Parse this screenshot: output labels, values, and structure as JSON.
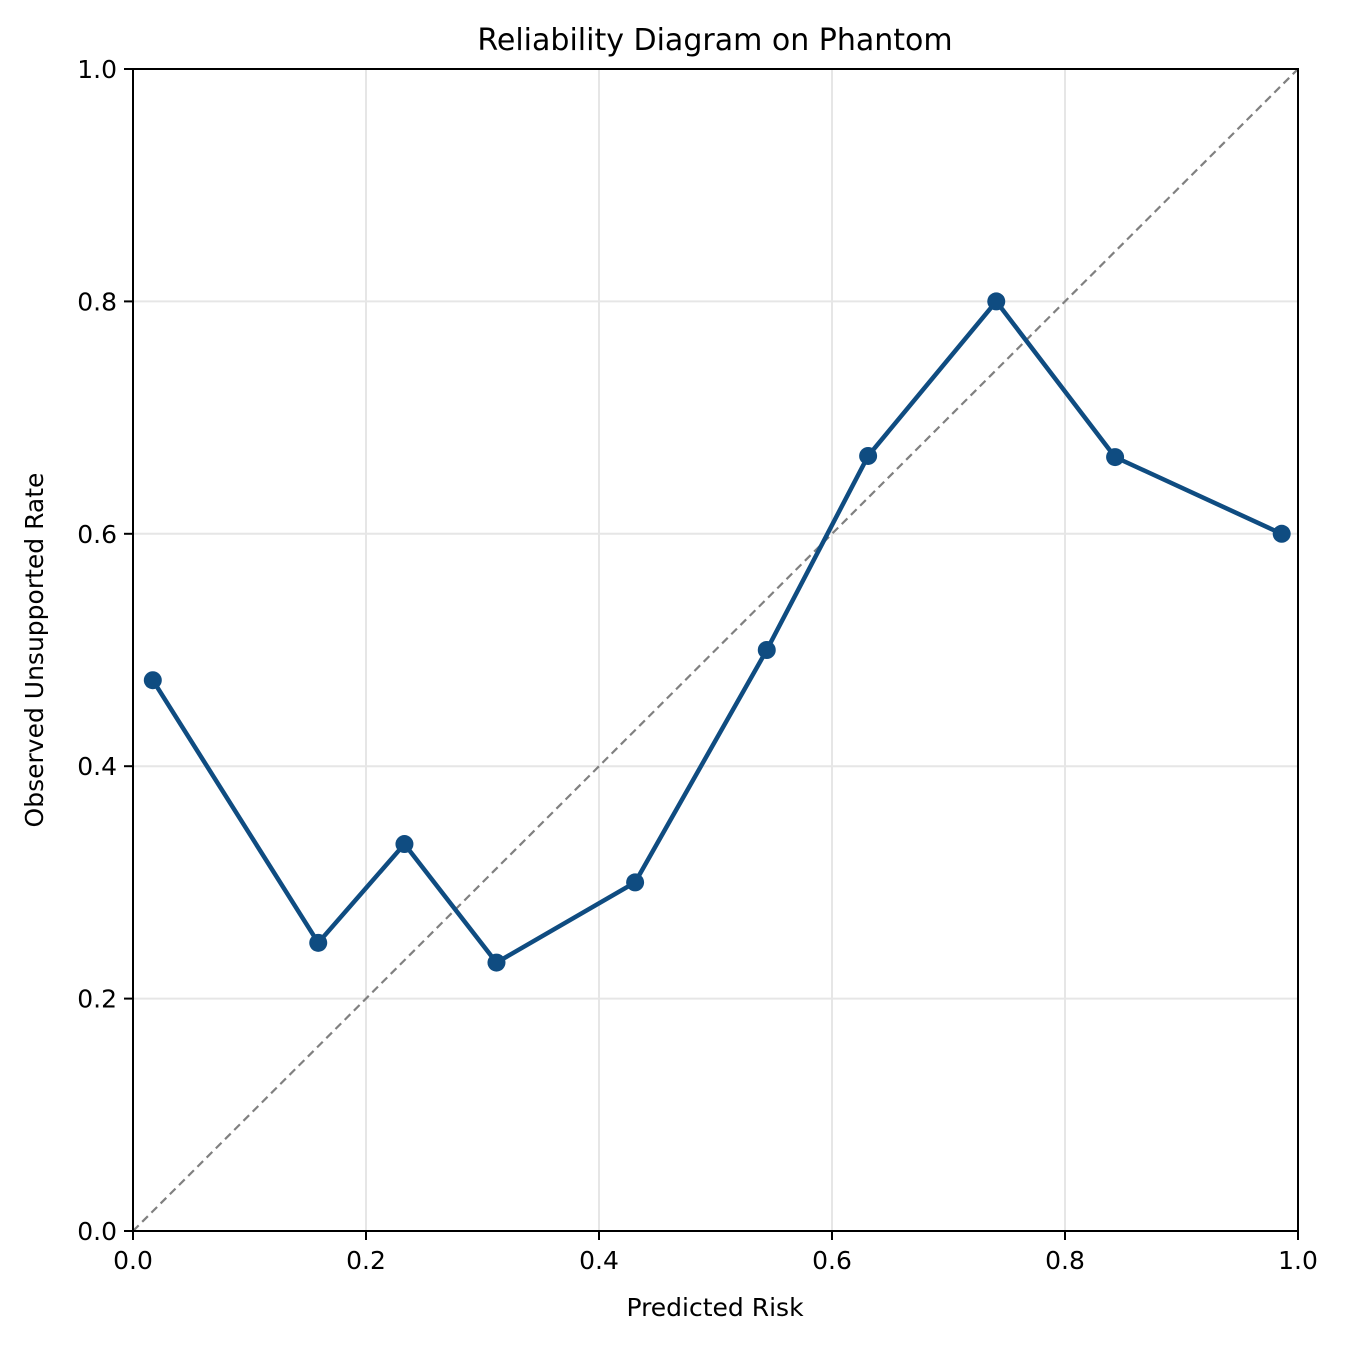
{
  "chart_data": {
    "type": "line",
    "title": "Reliability Diagram on Phantom",
    "xlabel": "Predicted Risk",
    "ylabel": "Observed Unsupported Rate",
    "xlim": [
      0.0,
      1.0
    ],
    "ylim": [
      0.0,
      1.0
    ],
    "xticks": [
      0.0,
      0.2,
      0.4,
      0.6,
      0.8,
      1.0
    ],
    "yticks": [
      0.0,
      0.2,
      0.4,
      0.6,
      0.8,
      1.0
    ],
    "xtick_labels": [
      "0.0",
      "0.2",
      "0.4",
      "0.6",
      "0.8",
      "1.0"
    ],
    "ytick_labels": [
      "0.0",
      "0.2",
      "0.4",
      "0.6",
      "0.8",
      "1.0"
    ],
    "grid": true,
    "reference_line": {
      "style": "dashed",
      "color": "#808080",
      "x": [
        0.0,
        1.0
      ],
      "y": [
        0.0,
        1.0
      ]
    },
    "series": [
      {
        "color": "#0f4c81",
        "marker": "circle",
        "x": [
          0.017,
          0.159,
          0.233,
          0.312,
          0.431,
          0.544,
          0.631,
          0.741,
          0.843,
          0.986
        ],
        "y": [
          0.474,
          0.248,
          0.333,
          0.231,
          0.3,
          0.5,
          0.667,
          0.8,
          0.666,
          0.6
        ]
      }
    ]
  }
}
